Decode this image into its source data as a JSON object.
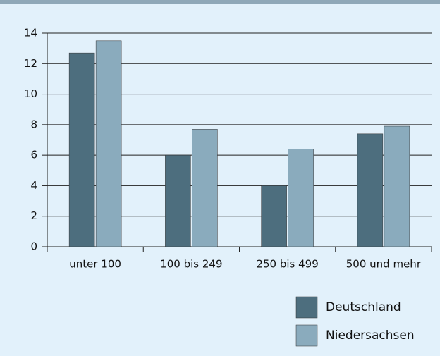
{
  "chart_data": {
    "type": "bar",
    "categories": [
      "unter 100",
      "100 bis 249",
      "250 bis 499",
      "500 und mehr"
    ],
    "series": [
      {
        "name": "Deutschland",
        "color": "#4d6e7e",
        "values": [
          12.7,
          6.0,
          4.0,
          7.4
        ]
      },
      {
        "name": "Niedersachsen",
        "color": "#8aabbd",
        "values": [
          13.5,
          7.7,
          6.4,
          7.9
        ]
      }
    ],
    "ylim": [
      0,
      14
    ],
    "yticks": [
      0,
      2,
      4,
      6,
      8,
      10,
      12,
      14
    ],
    "grid": true,
    "legend": "bottom-right"
  }
}
